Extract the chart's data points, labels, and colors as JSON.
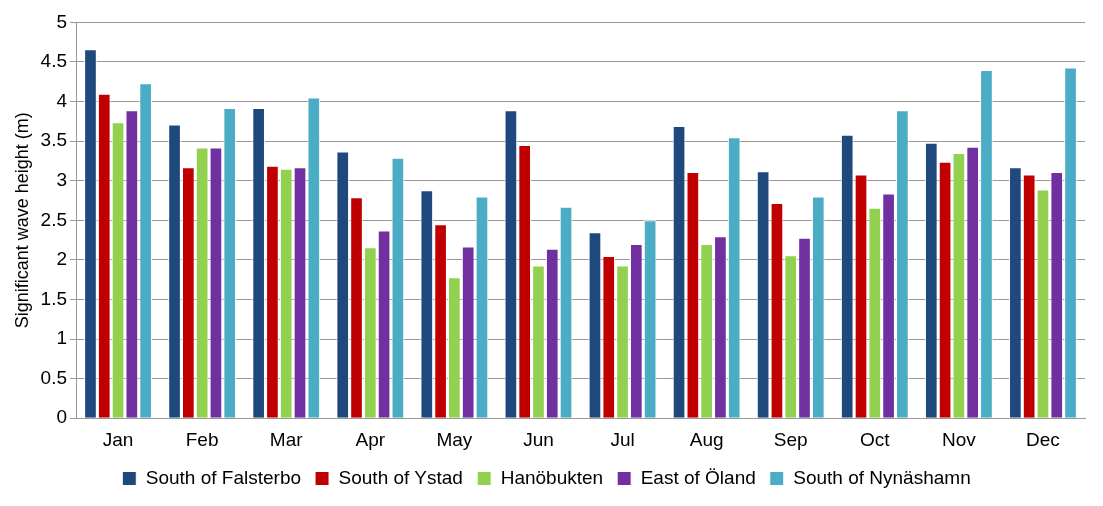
{
  "chart_data": {
    "type": "bar",
    "ylabel": "Significant wave height (m)",
    "categories": [
      "Jan",
      "Feb",
      "Mar",
      "Apr",
      "May",
      "Jun",
      "Jul",
      "Aug",
      "Sep",
      "Oct",
      "Nov",
      "Dec"
    ],
    "series": [
      {
        "name": "South of Falsterbo",
        "color": "#1f497d",
        "values": [
          4.66,
          3.71,
          3.92,
          3.37,
          2.88,
          3.89,
          2.35,
          3.69,
          3.12,
          3.58,
          3.48,
          3.17
        ]
      },
      {
        "name": "South of Ystad",
        "color": "#c00000",
        "values": [
          4.1,
          3.17,
          3.19,
          2.79,
          2.45,
          3.45,
          2.05,
          3.11,
          2.72,
          3.08,
          3.24,
          3.08
        ]
      },
      {
        "name": "Hanöbukten",
        "color": "#92d050",
        "values": [
          3.74,
          3.42,
          3.15,
          2.16,
          1.78,
          1.93,
          1.93,
          2.2,
          2.06,
          2.66,
          3.35,
          2.89
        ]
      },
      {
        "name": "East of Öland",
        "color": "#7030a0",
        "values": [
          3.89,
          3.42,
          3.17,
          2.37,
          2.17,
          2.14,
          2.2,
          2.3,
          2.28,
          2.84,
          3.43,
          3.11
        ]
      },
      {
        "name": "South of Nynäshamn",
        "color": "#4bacc6",
        "values": [
          4.23,
          3.92,
          4.05,
          3.29,
          2.8,
          2.67,
          2.5,
          3.55,
          2.8,
          3.89,
          4.4,
          4.43
        ]
      }
    ],
    "ylim": [
      0,
      5
    ],
    "yticks": [
      0,
      0.5,
      1,
      1.5,
      2,
      2.5,
      3,
      3.5,
      4,
      4.5,
      5
    ],
    "grid": "y",
    "legend": "bottom"
  }
}
